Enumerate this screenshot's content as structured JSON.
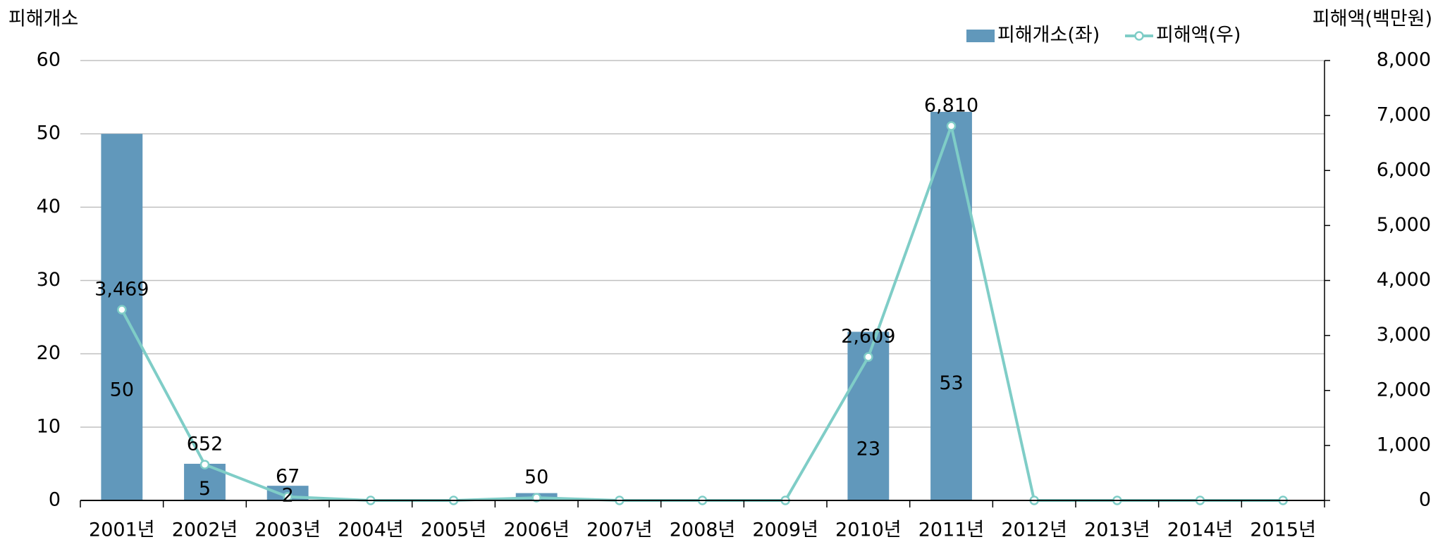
{
  "chart_data": {
    "type": "bar-line",
    "ylabel": "피해개소",
    "y2label": "피해액(백만원)",
    "categories": [
      "2001년",
      "2002년",
      "2003년",
      "2004년",
      "2005년",
      "2006년",
      "2007년",
      "2008년",
      "2009년",
      "2010년",
      "2011년",
      "2012년",
      "2013년",
      "2014년",
      "2015년"
    ],
    "series": [
      {
        "name": "피해개소(좌)",
        "color": "#6198bb",
        "type": "bar",
        "values": [
          50,
          5,
          2,
          0,
          0,
          1,
          0,
          0,
          0,
          23,
          53,
          0,
          0,
          0,
          0
        ],
        "value_labels": [
          "50",
          "5",
          "2",
          null,
          null,
          null,
          null,
          null,
          null,
          "23",
          "53",
          null,
          null,
          null,
          null
        ]
      },
      {
        "name": "피해액(우)",
        "color": "#7fcdc7",
        "type": "line",
        "axis": "y2",
        "values": [
          3469,
          652,
          67,
          0,
          0,
          50,
          0,
          0,
          0,
          2609,
          6810,
          0,
          0,
          0,
          0
        ],
        "value_labels": [
          "3,469",
          "652",
          "67",
          null,
          null,
          "50",
          null,
          null,
          null,
          "2,609",
          "6,810",
          null,
          null,
          null,
          null
        ]
      }
    ],
    "ylim": [
      0,
      60
    ],
    "yticks": [
      0,
      10,
      20,
      30,
      40,
      50,
      60
    ],
    "y2lim": [
      0,
      8000
    ],
    "y2ticks": [
      0,
      {
        "value": 1000,
        "label": "1,000"
      },
      {
        "value": 2000,
        "label": "2,000"
      },
      {
        "value": 3000,
        "label": "3,000"
      },
      {
        "value": 4000,
        "label": "4,000"
      },
      {
        "value": 5000,
        "label": "5,000"
      },
      {
        "value": 6000,
        "label": "6,000"
      },
      {
        "value": 7000,
        "label": "7,000"
      },
      {
        "value": 8000,
        "label": "8,000"
      }
    ],
    "grid": true
  }
}
